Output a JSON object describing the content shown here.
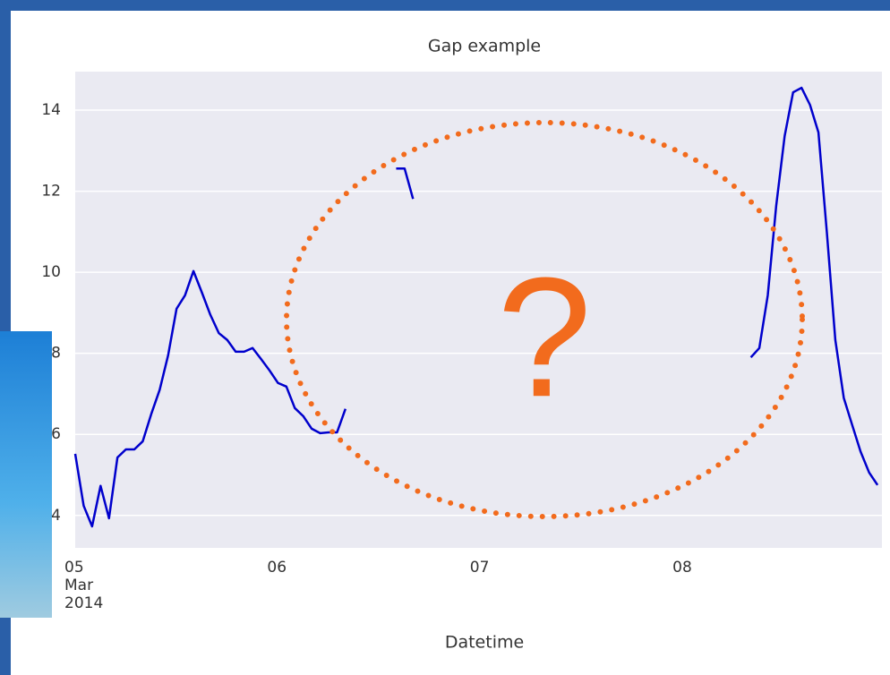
{
  "chart_data": {
    "type": "line",
    "title": "Gap example",
    "x_label": "Datetime",
    "x": [
      5,
      5.0417,
      5.0833,
      5.125,
      5.1667,
      5.2083,
      5.25,
      5.2917,
      5.3333,
      5.375,
      5.4167,
      5.4583,
      5.5,
      5.5417,
      5.5833,
      5.625,
      5.6667,
      5.7083,
      5.75,
      5.7917,
      5.8333,
      5.875,
      5.9167,
      5.9583,
      6,
      6.0417,
      6.0833,
      6.125,
      6.1667,
      6.2083,
      6.25,
      6.2917,
      6.3333,
      6.375,
      6.5833,
      6.625,
      6.6667,
      6.7083,
      8.3333,
      8.375,
      8.4167,
      8.4583,
      8.5,
      8.5417,
      8.5833,
      8.625,
      8.6667,
      8.7083,
      8.75,
      8.7917,
      8.8333,
      8.875,
      8.9167,
      8.9583
    ],
    "series": [
      {
        "color": "#0000cc",
        "values": [
          5.52,
          4.24,
          3.73,
          4.73,
          3.93,
          5.43,
          5.63,
          5.63,
          5.83,
          6.5,
          7.1,
          7.95,
          9.1,
          9.43,
          10.03,
          9.5,
          8.95,
          8.5,
          8.33,
          8.04,
          8.04,
          8.13,
          7.86,
          7.58,
          7.27,
          7.18,
          6.65,
          6.45,
          6.14,
          6.03,
          6.05,
          6.05,
          6.63,
          null,
          12.56,
          12.56,
          11.81,
          null,
          7.9,
          8.13,
          9.43,
          11.64,
          13.36,
          14.44,
          14.55,
          14.13,
          13.45,
          10.98,
          8.33,
          6.9,
          6.23,
          5.57,
          5.06,
          4.75
        ]
      }
    ],
    "xlim": [
      5,
      8.98
    ],
    "ylim": [
      3.2,
      14.95
    ],
    "xticks": [
      {
        "value": 5,
        "label": "05\nMar\n2014"
      },
      {
        "value": 6,
        "label": "06"
      },
      {
        "value": 7,
        "label": "07"
      },
      {
        "value": 8,
        "label": "08"
      }
    ],
    "yticks": [
      4,
      6,
      8,
      10,
      12,
      14
    ],
    "grid": "y",
    "annotation": "?"
  }
}
